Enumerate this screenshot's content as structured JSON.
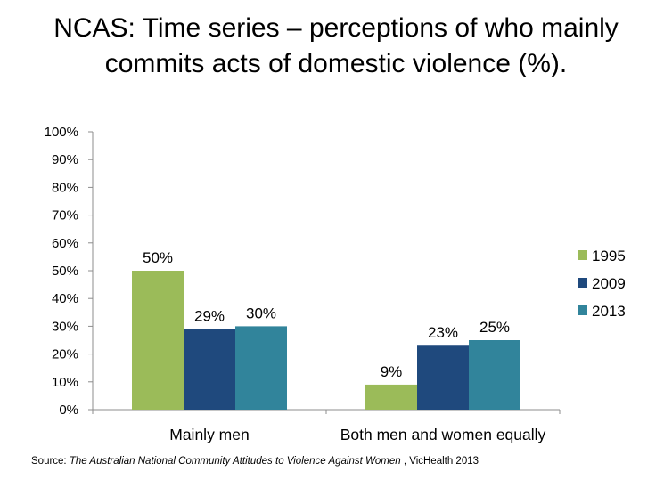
{
  "title_lines": [
    "NCAS:  Time series – perceptions of who mainly",
    "commits acts of domestic violence (%)."
  ],
  "source": {
    "prefix": "Source:  ",
    "publication": "The Australian  National Community Attitudes to Violence Against Women",
    "suffix": " , VicHealth 2013"
  },
  "chart_data": {
    "type": "bar",
    "title": "NCAS:  Time series – perceptions of who mainly commits acts of domestic violence (%).",
    "categories": [
      "Mainly men",
      "Both men and women equally"
    ],
    "series": [
      {
        "name": "1995",
        "values": [
          50,
          9
        ],
        "labels": [
          "50%",
          "9%"
        ],
        "color": "#9bbb59"
      },
      {
        "name": "2009",
        "values": [
          29,
          23
        ],
        "labels": [
          "29%",
          "23%"
        ],
        "color": "#1f497d"
      },
      {
        "name": "2013",
        "values": [
          30,
          25
        ],
        "labels": [
          "30%",
          "25%"
        ],
        "color": "#31849b"
      }
    ],
    "ylim": [
      0,
      100
    ],
    "yticks": [
      0,
      10,
      20,
      30,
      40,
      50,
      60,
      70,
      80,
      90,
      100
    ],
    "ytick_labels": [
      "0%",
      "10%",
      "20%",
      "30%",
      "40%",
      "50%",
      "60%",
      "70%",
      "80%",
      "90%",
      "100%"
    ],
    "grid": false,
    "legend_position": "right"
  }
}
